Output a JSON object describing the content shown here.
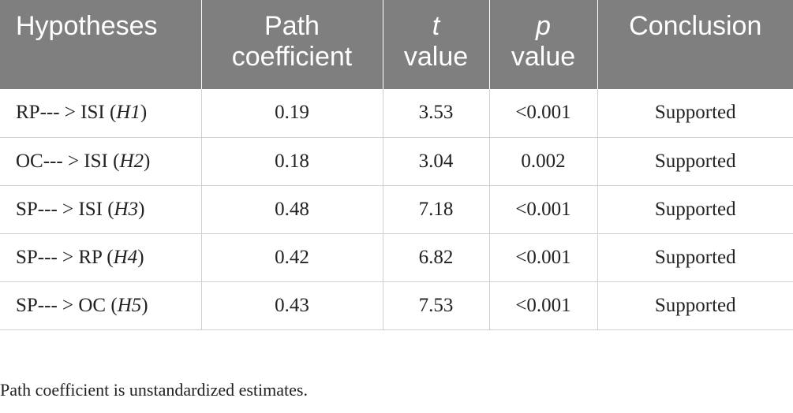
{
  "table": {
    "headers": [
      {
        "lines": [
          "Hypotheses"
        ],
        "italic_first": false
      },
      {
        "lines": [
          "Path",
          "coefficient"
        ],
        "italic_first": false
      },
      {
        "lines": [
          "t",
          "value"
        ],
        "italic_first": true
      },
      {
        "lines": [
          "p",
          "value"
        ],
        "italic_first": true
      },
      {
        "lines": [
          "Conclusion"
        ],
        "italic_first": false
      }
    ],
    "rows": [
      {
        "hypothesis": "RP--- > ISI",
        "hyp_label": "H1",
        "path_coefficient": "0.19",
        "t_value": "3.53",
        "p_value": "<0.001",
        "conclusion": "Supported"
      },
      {
        "hypothesis": "OC--- > ISI",
        "hyp_label": "H2",
        "path_coefficient": "0.18",
        "t_value": "3.04",
        "p_value": "0.002",
        "conclusion": "Supported"
      },
      {
        "hypothesis": "SP--- > ISI",
        "hyp_label": "H3",
        "path_coefficient": "0.48",
        "t_value": "7.18",
        "p_value": "<0.001",
        "conclusion": "Supported"
      },
      {
        "hypothesis": "SP--- > RP",
        "hyp_label": "H4",
        "path_coefficient": "0.42",
        "t_value": "6.82",
        "p_value": "<0.001",
        "conclusion": "Supported"
      },
      {
        "hypothesis": "SP--- > OC",
        "hyp_label": "H5",
        "path_coefficient": "0.43",
        "t_value": "7.53",
        "p_value": "<0.001",
        "conclusion": "Supported"
      }
    ]
  },
  "footnote": "Path coefficient is unstandardized estimates.",
  "colors": {
    "header_bg": "#7f7f7f",
    "header_text": "#ffffff",
    "body_text": "#222222",
    "rule": "#cfcfcf"
  }
}
